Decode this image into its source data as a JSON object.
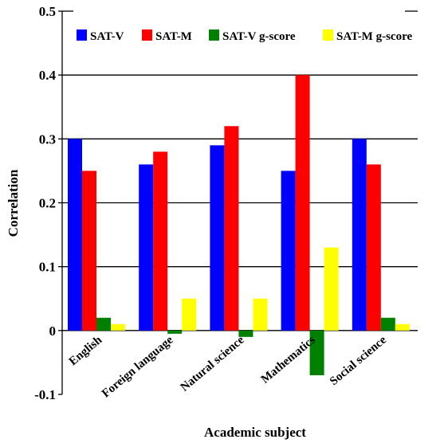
{
  "chart_data": {
    "type": "bar",
    "title": "",
    "xlabel": "Academic subject",
    "ylabel": "Correlation",
    "ylim": [
      -0.1,
      0.5
    ],
    "yticks": [
      "-0.1",
      "0",
      "0.1",
      "0.2",
      "0.3",
      "0.4",
      "0.5"
    ],
    "grid": "horizontal",
    "legend_position": "top",
    "categories": [
      "English",
      "Foreign language",
      "Natural science",
      "Mathematics",
      "Social science"
    ],
    "series": [
      {
        "name": "SAT-V",
        "color": "#0000ff",
        "values": [
          0.3,
          0.26,
          0.29,
          0.25,
          0.3
        ]
      },
      {
        "name": "SAT-M",
        "color": "#ff0000",
        "values": [
          0.25,
          0.28,
          0.32,
          0.4,
          0.26
        ]
      },
      {
        "name": "SAT-V g-score",
        "color": "#008000",
        "values": [
          0.02,
          -0.005,
          -0.01,
          -0.07,
          0.02
        ]
      },
      {
        "name": "SAT-M g-score",
        "color": "#ffff00",
        "values": [
          0.01,
          0.05,
          0.05,
          0.13,
          0.01
        ]
      }
    ]
  }
}
